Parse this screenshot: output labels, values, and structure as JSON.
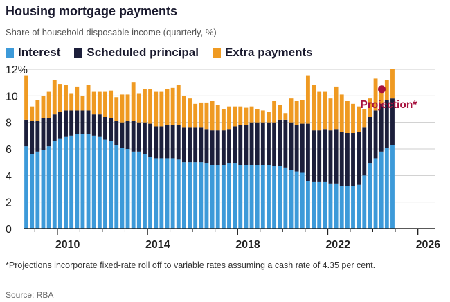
{
  "header": {
    "title": "Housing mortgage payments",
    "subtitle": "Share of household disposable income (quarterly, %)"
  },
  "footnote": "*Projections incorporate fixed-rate roll off to variable rates assuming a cash rate of 4.35 per cent.",
  "source": "Source: RBA",
  "colors": {
    "interest": "#3d9ad9",
    "principal": "#1c1f3b",
    "extra": "#ef9a22",
    "projection": "#a8123e",
    "grid": "#cccccc",
    "axis": "#222222"
  },
  "chart_data": {
    "type": "bar",
    "stacked": true,
    "title": "Housing mortgage payments",
    "subtitle": "Share of household disposable income (quarterly, %)",
    "xlabel": "",
    "ylabel": "",
    "x_range": [
      2008.5,
      2026.75
    ],
    "ylim": [
      0,
      12
    ],
    "y_ticks": [
      0,
      2,
      4,
      6,
      8,
      10,
      12
    ],
    "y_tick_labels": [
      "0",
      "2",
      "4",
      "6",
      "8",
      "10",
      "12%"
    ],
    "x_ticks": [
      2010,
      2014,
      2018,
      2022,
      2026
    ],
    "x_tick_labels": [
      "2010",
      "2014",
      "2018",
      "2022",
      "2026"
    ],
    "grid": true,
    "legend_position": "top-left",
    "start_quarter": "2008 Q3",
    "series": [
      {
        "name": "Interest",
        "values": [
          6.2,
          5.6,
          5.8,
          5.9,
          6.2,
          6.6,
          6.8,
          6.9,
          7.0,
          7.1,
          7.1,
          7.1,
          7.0,
          6.9,
          6.7,
          6.6,
          6.3,
          6.1,
          6.0,
          5.8,
          5.8,
          5.6,
          5.4,
          5.3,
          5.3,
          5.3,
          5.3,
          5.2,
          5.0,
          5.0,
          5.0,
          5.0,
          4.9,
          4.8,
          4.8,
          4.8,
          4.9,
          4.9,
          4.8,
          4.8,
          4.8,
          4.8,
          4.8,
          4.8,
          4.7,
          4.7,
          4.6,
          4.4,
          4.3,
          4.2,
          3.6,
          3.5,
          3.5,
          3.5,
          3.4,
          3.4,
          3.2,
          3.2,
          3.2,
          3.3,
          4.0,
          4.9,
          5.3,
          5.8,
          6.1,
          6.3
        ]
      },
      {
        "name": "Scheduled principal",
        "values": [
          2.0,
          2.5,
          2.3,
          2.4,
          2.1,
          2.0,
          2.0,
          2.0,
          1.9,
          1.8,
          1.8,
          1.8,
          1.6,
          1.7,
          1.7,
          1.7,
          1.8,
          1.9,
          2.1,
          2.3,
          2.2,
          2.4,
          2.5,
          2.4,
          2.4,
          2.5,
          2.5,
          2.6,
          2.6,
          2.6,
          2.6,
          2.6,
          2.6,
          2.6,
          2.6,
          2.6,
          2.6,
          2.8,
          3.0,
          3.0,
          3.2,
          3.2,
          3.2,
          3.2,
          3.3,
          3.5,
          3.6,
          3.6,
          3.5,
          3.7,
          4.3,
          3.9,
          3.9,
          4.0,
          4.0,
          4.1,
          4.1,
          4.0,
          4.0,
          4.0,
          3.6,
          3.5,
          3.6,
          3.6,
          3.6,
          3.5
        ]
      },
      {
        "name": "Extra payments",
        "values": [
          3.3,
          1.1,
          1.6,
          1.7,
          2.0,
          2.6,
          2.1,
          1.9,
          1.3,
          1.8,
          1.1,
          1.9,
          1.7,
          1.7,
          1.9,
          2.1,
          1.8,
          2.1,
          2.0,
          2.9,
          2.2,
          2.5,
          2.6,
          2.6,
          2.6,
          2.7,
          2.8,
          3.0,
          2.4,
          2.2,
          1.8,
          1.9,
          2.0,
          2.2,
          1.9,
          1.6,
          1.7,
          1.5,
          1.4,
          1.3,
          1.2,
          1.0,
          0.9,
          0.8,
          1.6,
          1.1,
          0.5,
          1.8,
          1.8,
          1.8,
          3.6,
          3.4,
          2.9,
          2.8,
          2.4,
          3.2,
          2.8,
          2.4,
          2.2,
          1.9,
          1.4,
          1.4,
          2.4,
          1.3,
          1.5,
          2.2
        ]
      }
    ],
    "projection": {
      "x": 2024.4,
      "value": 10.5,
      "label": "Projection*"
    }
  }
}
